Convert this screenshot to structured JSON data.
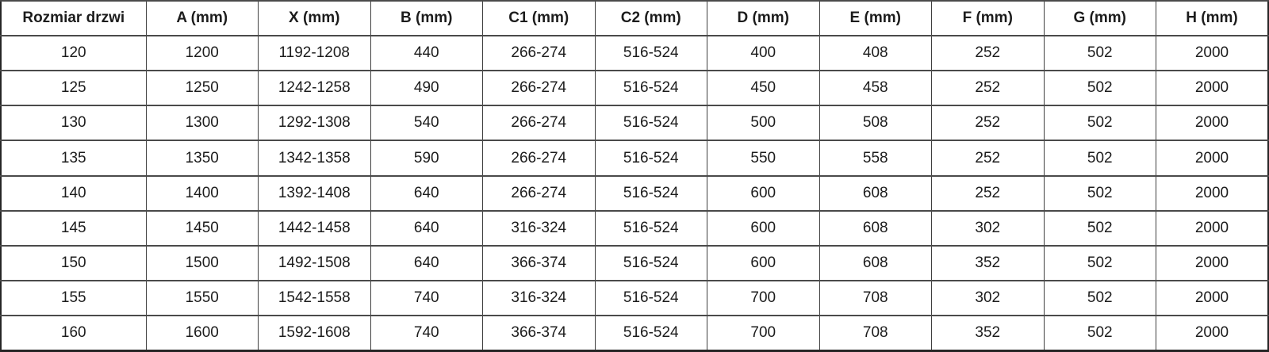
{
  "table": {
    "columns": [
      "Rozmiar drzwi",
      "A (mm)",
      "X (mm)",
      "B (mm)",
      "C1 (mm)",
      "C2 (mm)",
      "D (mm)",
      "E (mm)",
      "F (mm)",
      "G (mm)",
      "H (mm)"
    ],
    "rows": [
      [
        "120",
        "1200",
        "1192-1208",
        "440",
        "266-274",
        "516-524",
        "400",
        "408",
        "252",
        "502",
        "2000"
      ],
      [
        "125",
        "1250",
        "1242-1258",
        "490",
        "266-274",
        "516-524",
        "450",
        "458",
        "252",
        "502",
        "2000"
      ],
      [
        "130",
        "1300",
        "1292-1308",
        "540",
        "266-274",
        "516-524",
        "500",
        "508",
        "252",
        "502",
        "2000"
      ],
      [
        "135",
        "1350",
        "1342-1358",
        "590",
        "266-274",
        "516-524",
        "550",
        "558",
        "252",
        "502",
        "2000"
      ],
      [
        "140",
        "1400",
        "1392-1408",
        "640",
        "266-274",
        "516-524",
        "600",
        "608",
        "252",
        "502",
        "2000"
      ],
      [
        "145",
        "1450",
        "1442-1458",
        "640",
        "316-324",
        "516-524",
        "600",
        "608",
        "302",
        "502",
        "2000"
      ],
      [
        "150",
        "1500",
        "1492-1508",
        "640",
        "366-374",
        "516-524",
        "600",
        "608",
        "352",
        "502",
        "2000"
      ],
      [
        "155",
        "1550",
        "1542-1558",
        "740",
        "316-324",
        "516-524",
        "700",
        "708",
        "302",
        "502",
        "2000"
      ],
      [
        "160",
        "1600",
        "1592-1608",
        "740",
        "366-374",
        "516-524",
        "700",
        "708",
        "352",
        "502",
        "2000"
      ]
    ]
  },
  "chart_data": {
    "type": "table",
    "title": "",
    "columns": [
      "Rozmiar drzwi",
      "A (mm)",
      "X (mm)",
      "B (mm)",
      "C1 (mm)",
      "C2 (mm)",
      "D (mm)",
      "E (mm)",
      "F (mm)",
      "G (mm)",
      "H (mm)"
    ],
    "rows": [
      [
        "120",
        "1200",
        "1192-1208",
        "440",
        "266-274",
        "516-524",
        "400",
        "408",
        "252",
        "502",
        "2000"
      ],
      [
        "125",
        "1250",
        "1242-1258",
        "490",
        "266-274",
        "516-524",
        "450",
        "458",
        "252",
        "502",
        "2000"
      ],
      [
        "130",
        "1300",
        "1292-1308",
        "540",
        "266-274",
        "516-524",
        "500",
        "508",
        "252",
        "502",
        "2000"
      ],
      [
        "135",
        "1350",
        "1342-1358",
        "590",
        "266-274",
        "516-524",
        "550",
        "558",
        "252",
        "502",
        "2000"
      ],
      [
        "140",
        "1400",
        "1392-1408",
        "640",
        "266-274",
        "516-524",
        "600",
        "608",
        "252",
        "502",
        "2000"
      ],
      [
        "145",
        "1450",
        "1442-1458",
        "640",
        "316-324",
        "516-524",
        "600",
        "608",
        "302",
        "502",
        "2000"
      ],
      [
        "150",
        "1500",
        "1492-1508",
        "640",
        "366-374",
        "516-524",
        "600",
        "608",
        "352",
        "502",
        "2000"
      ],
      [
        "155",
        "1550",
        "1542-1558",
        "740",
        "316-324",
        "516-524",
        "700",
        "708",
        "302",
        "502",
        "2000"
      ],
      [
        "160",
        "1600",
        "1592-1608",
        "740",
        "366-374",
        "516-524",
        "700",
        "708",
        "352",
        "502",
        "2000"
      ]
    ]
  },
  "colors": {
    "background": "#ffffff",
    "text": "#1c1c1c",
    "grid_vertical": "#3f3f3f",
    "grid_horizontal": "#4a4a4a",
    "outer_border": "#262626"
  }
}
